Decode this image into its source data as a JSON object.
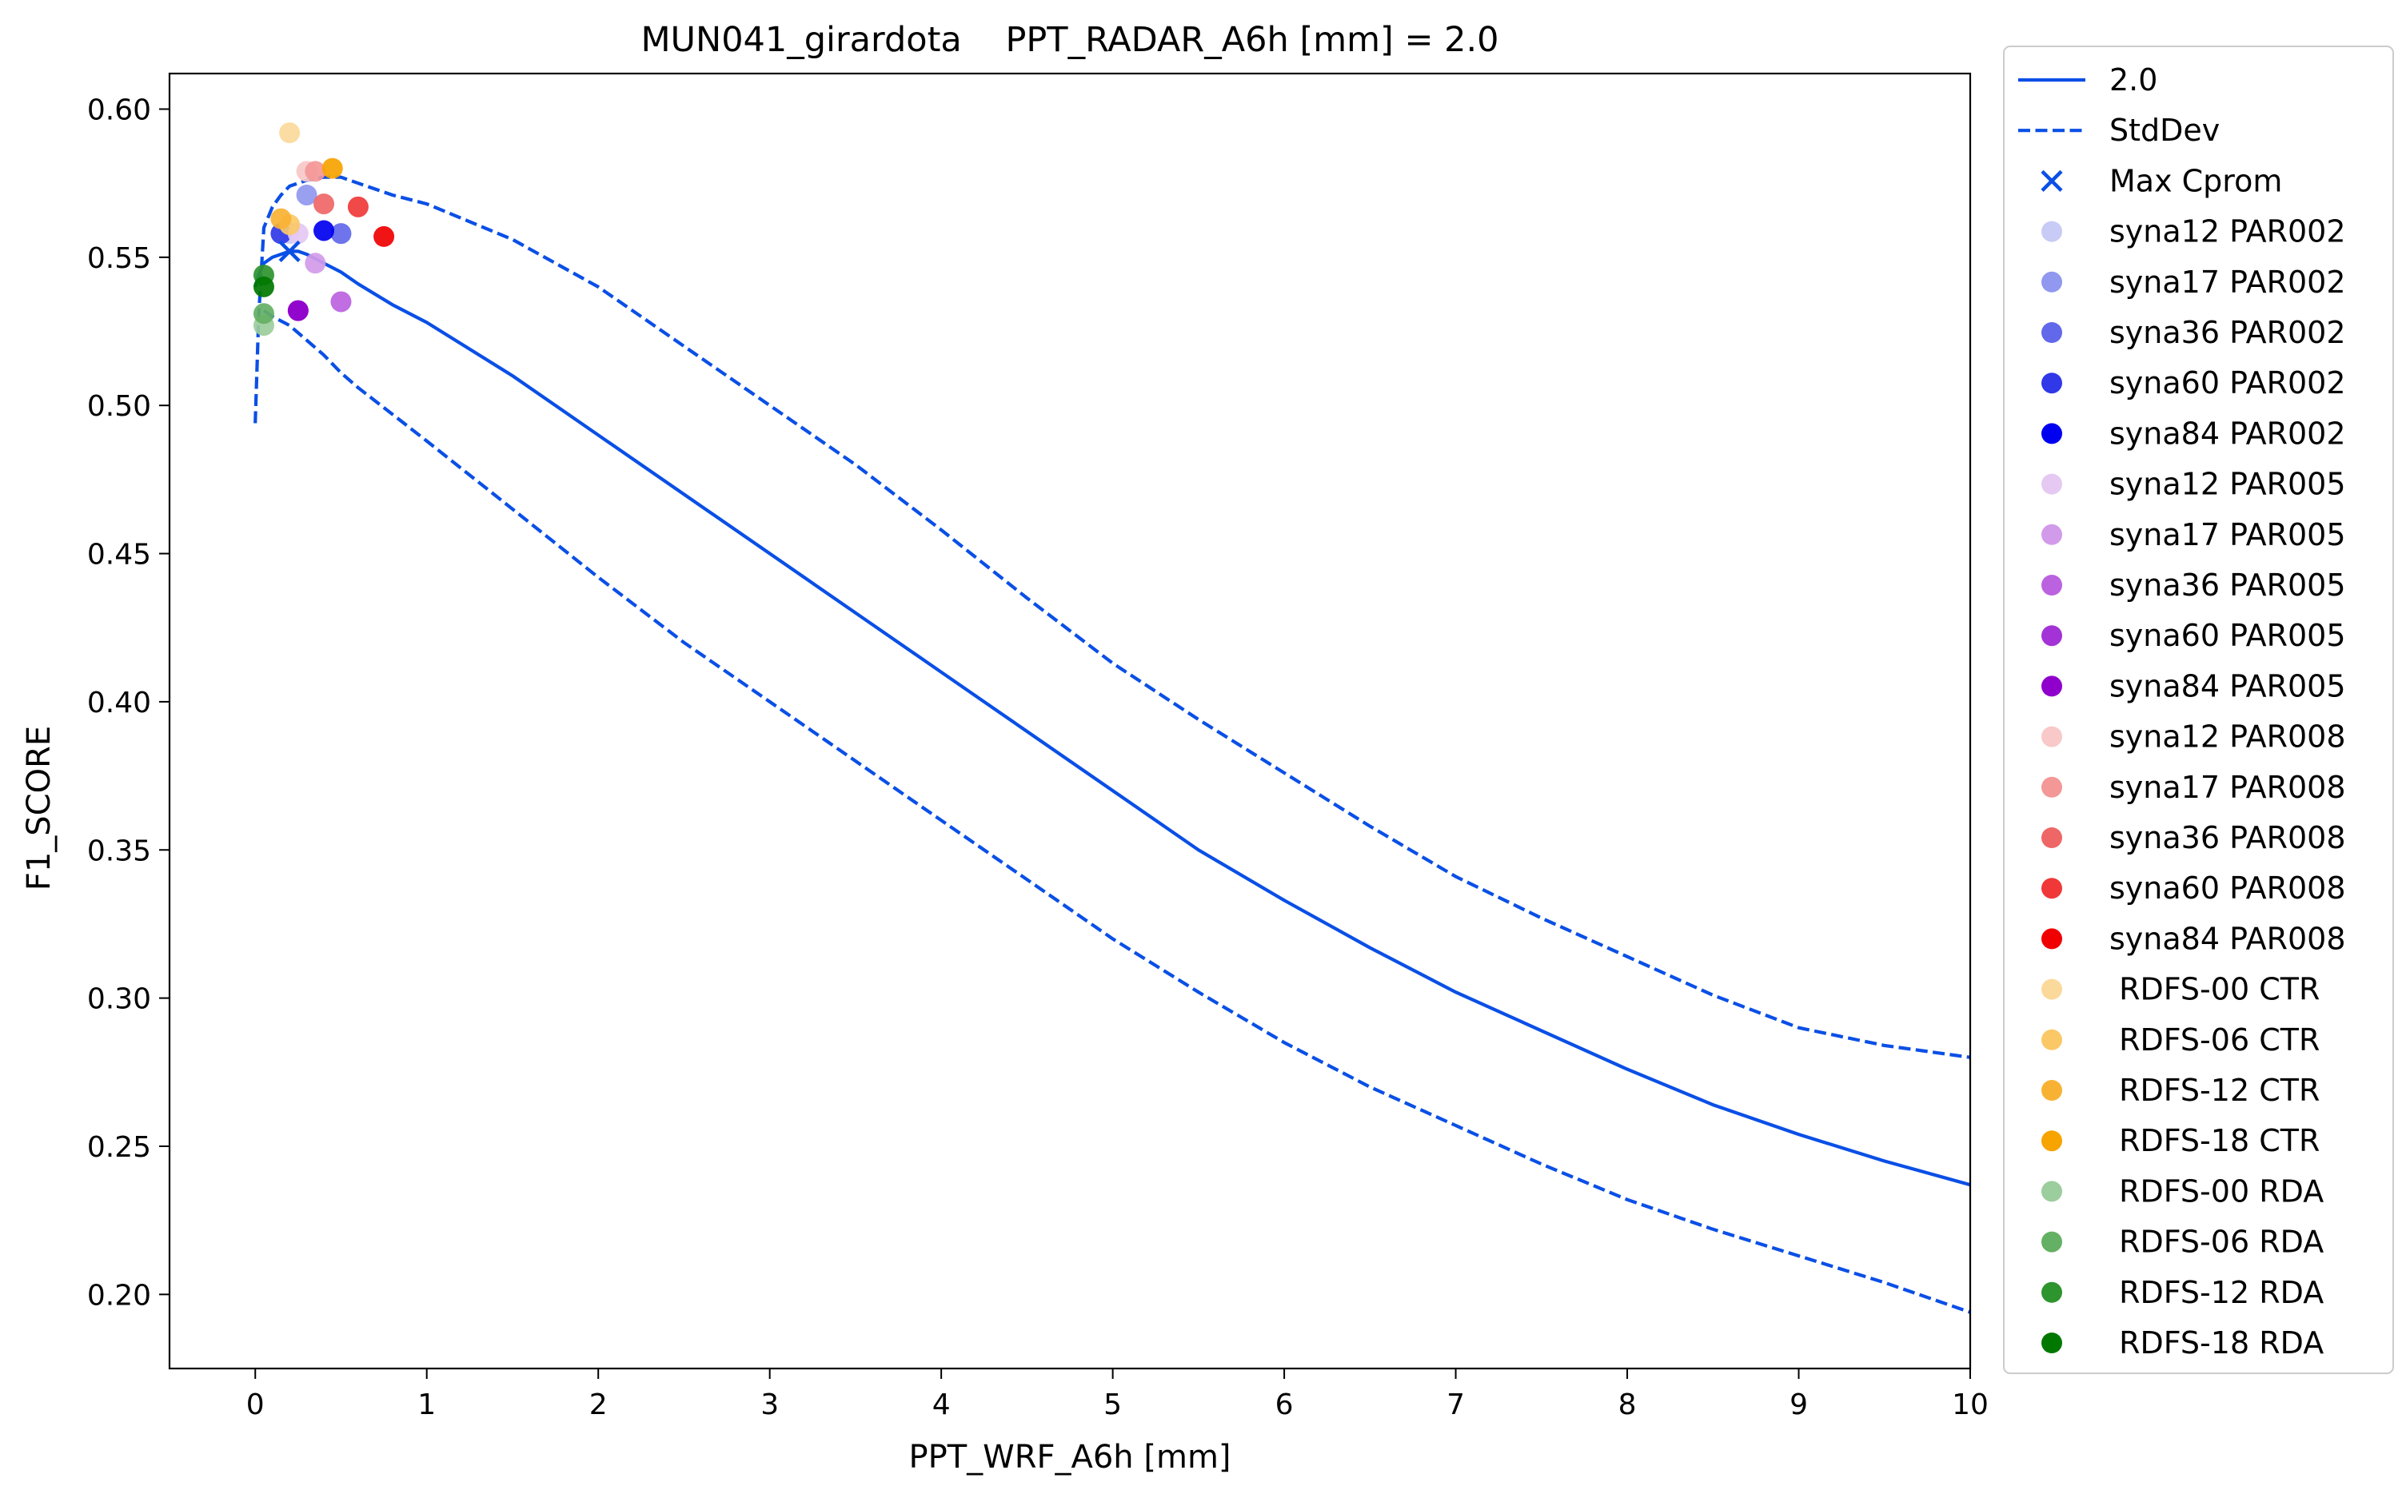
{
  "chart_data": {
    "type": "line",
    "title": "MUN041_girardota    PPT_RADAR_A6h [mm] = 2.0",
    "xlabel": "PPT_WRF_A6h [mm]",
    "ylabel": "F1_SCORE",
    "xlim": [
      -0.5,
      10
    ],
    "ylim": [
      0.175,
      0.612
    ],
    "xticks": [
      0,
      1,
      2,
      3,
      4,
      5,
      6,
      7,
      8,
      9,
      10
    ],
    "xtick_labels": [
      "0",
      "1",
      "2",
      "3",
      "4",
      "5",
      "6",
      "7",
      "8",
      "9",
      "10"
    ],
    "yticks": [
      0.2,
      0.25,
      0.3,
      0.35,
      0.4,
      0.45,
      0.5,
      0.55,
      0.6
    ],
    "ytick_labels": [
      "0.20",
      "0.25",
      "0.30",
      "0.35",
      "0.40",
      "0.45",
      "0.50",
      "0.55",
      "0.60"
    ],
    "grid": false,
    "legend_position": "outside-right",
    "lines": [
      {
        "name": "2.0",
        "style": "solid",
        "color": "#0a4fe6",
        "x": [
          0.0,
          0.02,
          0.05,
          0.1,
          0.15,
          0.2,
          0.25,
          0.3,
          0.4,
          0.5,
          0.6,
          0.8,
          1.0,
          1.5,
          2.0,
          2.5,
          3.0,
          3.5,
          4.0,
          4.5,
          5.0,
          5.5,
          6.0,
          6.5,
          7.0,
          7.5,
          8.0,
          8.5,
          9.0,
          9.5,
          10.0
        ],
        "y": [
          0.54,
          0.544,
          0.548,
          0.55,
          0.551,
          0.552,
          0.552,
          0.551,
          0.548,
          0.545,
          0.541,
          0.534,
          0.528,
          0.51,
          0.49,
          0.47,
          0.45,
          0.43,
          0.41,
          0.39,
          0.37,
          0.35,
          0.333,
          0.317,
          0.302,
          0.289,
          0.276,
          0.264,
          0.254,
          0.245,
          0.237
        ]
      },
      {
        "name": "StdDev",
        "style": "dashed",
        "color": "#0a4fe6",
        "x": [
          0.0,
          0.02,
          0.05,
          0.1,
          0.15,
          0.2,
          0.3,
          0.4,
          0.5,
          0.6,
          0.8,
          1.0,
          1.5,
          2.0,
          2.5,
          3.0,
          3.5,
          4.0,
          4.5,
          5.0,
          5.5,
          6.0,
          6.5,
          7.0,
          7.5,
          8.0,
          8.5,
          9.0,
          9.5,
          10.0
        ],
        "y": [
          0.494,
          0.53,
          0.56,
          0.567,
          0.571,
          0.574,
          0.576,
          0.577,
          0.577,
          0.575,
          0.571,
          0.568,
          0.556,
          0.54,
          0.52,
          0.5,
          0.48,
          0.458,
          0.435,
          0.413,
          0.394,
          0.376,
          0.358,
          0.341,
          0.327,
          0.314,
          0.301,
          0.29,
          0.284,
          0.28
        ]
      },
      {
        "name": "",
        "style": "dashed",
        "color": "#0a4fe6",
        "x": [
          0.05,
          0.1,
          0.2,
          0.3,
          0.4,
          0.5,
          0.6,
          0.8,
          1.0,
          1.5,
          2.0,
          2.5,
          3.0,
          3.5,
          4.0,
          4.5,
          5.0,
          5.5,
          6.0,
          6.5,
          7.0,
          7.5,
          8.0,
          8.5,
          9.0,
          9.5,
          10.0
        ],
        "y": [
          0.532,
          0.53,
          0.527,
          0.522,
          0.517,
          0.511,
          0.506,
          0.497,
          0.488,
          0.465,
          0.442,
          0.42,
          0.4,
          0.38,
          0.36,
          0.34,
          0.32,
          0.302,
          0.285,
          0.27,
          0.257,
          0.244,
          0.232,
          0.222,
          0.213,
          0.204,
          0.194
        ]
      }
    ],
    "max_marker": {
      "name": "Max Cprom",
      "color": "#0a4fe6",
      "x": 0.2,
      "y": 0.552
    },
    "series": [
      {
        "name": "syna12 PAR002",
        "color": "#c8cbf5",
        "x": 0.2,
        "y": 0.558
      },
      {
        "name": "syna17 PAR002",
        "color": "#9098ef",
        "x": 0.3,
        "y": 0.571
      },
      {
        "name": "syna36 PAR002",
        "color": "#6168ea",
        "x": 0.5,
        "y": 0.558
      },
      {
        "name": "syna60 PAR002",
        "color": "#3038e8",
        "x": 0.15,
        "y": 0.558
      },
      {
        "name": "syna84 PAR002",
        "color": "#0000f0",
        "x": 0.4,
        "y": 0.559
      },
      {
        "name": "syna12 PAR005",
        "color": "#e5c9f3",
        "x": 0.25,
        "y": 0.558
      },
      {
        "name": "syna17 PAR005",
        "color": "#d29be9",
        "x": 0.35,
        "y": 0.548
      },
      {
        "name": "syna36 PAR005",
        "color": "#bb62e0",
        "x": 0.5,
        "y": 0.535
      },
      {
        "name": "syna60 PAR005",
        "color": "#a333d6",
        "x": 0.25,
        "y": 0.532
      },
      {
        "name": "syna84 PAR005",
        "color": "#9000cc",
        "x": 0.25,
        "y": 0.532
      },
      {
        "name": "syna12 PAR008",
        "color": "#f9c8c8",
        "x": 0.3,
        "y": 0.579
      },
      {
        "name": "syna17 PAR008",
        "color": "#f49797",
        "x": 0.35,
        "y": 0.579
      },
      {
        "name": "syna36 PAR008",
        "color": "#ef6666",
        "x": 0.4,
        "y": 0.568
      },
      {
        "name": "syna60 PAR008",
        "color": "#f03838",
        "x": 0.6,
        "y": 0.567
      },
      {
        "name": "syna84 PAR008",
        "color": "#f00000",
        "x": 0.75,
        "y": 0.557
      },
      {
        "name": " RDFS-00 CTR",
        "color": "#fbd99a",
        "x": 0.2,
        "y": 0.592
      },
      {
        "name": " RDFS-06 CTR",
        "color": "#fac867",
        "x": 0.2,
        "y": 0.561
      },
      {
        "name": " RDFS-12 CTR",
        "color": "#f8b233",
        "x": 0.15,
        "y": 0.563
      },
      {
        "name": " RDFS-18 CTR",
        "color": "#f7a300",
        "x": 0.45,
        "y": 0.58
      },
      {
        "name": " RDFS-00 RDA",
        "color": "#9ccd9c",
        "x": 0.05,
        "y": 0.527
      },
      {
        "name": " RDFS-06 RDA",
        "color": "#64b064",
        "x": 0.05,
        "y": 0.531
      },
      {
        "name": " RDFS-12 RDA",
        "color": "#2e942e",
        "x": 0.05,
        "y": 0.544
      },
      {
        "name": " RDFS-18 RDA",
        "color": "#007800",
        "x": 0.05,
        "y": 0.54
      }
    ]
  }
}
